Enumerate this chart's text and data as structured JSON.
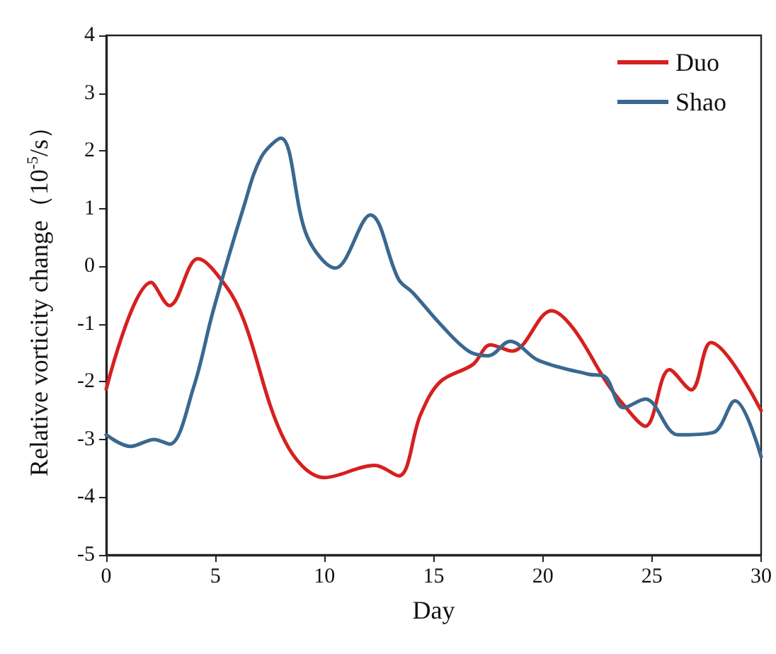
{
  "chart_data": {
    "type": "line",
    "xlabel": "Day",
    "ylabel": "Relative vorticity change（10$^{-5}$/s）",
    "xlim": [
      0,
      30
    ],
    "xticks": [
      0,
      5,
      10,
      15,
      20,
      25,
      30
    ],
    "ylim": [
      -5,
      4
    ],
    "yticks": [
      -5,
      -4,
      -3,
      -2,
      -1,
      0,
      1,
      2,
      3,
      4
    ],
    "grid": false,
    "legend": "top right",
    "marker": "none",
    "line_style": "solid",
    "series": [
      {
        "name": "Duo",
        "color": "#d62020",
        "x": [
          0,
          2.06,
          2.9,
          4.2,
          5.5,
          6.3,
          8.2,
          10,
          12.3,
          13.4,
          14.4,
          15.3,
          16.8,
          17.6,
          18.6,
          20.4,
          21.4,
          22.9,
          23.7,
          24.7,
          25.8,
          26.8,
          27.7,
          30
        ],
        "values": [
          -2.13,
          -0.28,
          -0.68,
          0.13,
          -0.35,
          -0.93,
          -3.04,
          -3.66,
          -3.45,
          -3.63,
          -2.57,
          -2.0,
          -1.7,
          -1.36,
          -1.47,
          -0.77,
          -1.08,
          -2.0,
          -2.4,
          -2.77,
          -1.79,
          -2.14,
          -1.32,
          -2.5
        ]
      },
      {
        "name": "Shao",
        "color": "#3a6890",
        "x": [
          0,
          1.1,
          2.2,
          2.9,
          4,
          4.9,
          6.3,
          7.1,
          8,
          9.2,
          10.5,
          12.1,
          13.4,
          14.05,
          15.3,
          16.6,
          17.5,
          18.5,
          19.8,
          22.1,
          22.8,
          23.7,
          24.7,
          26.2,
          27.8,
          28.8,
          30
        ],
        "values": [
          -2.92,
          -3.12,
          -3.0,
          -3.08,
          -2.1,
          -0.77,
          1.03,
          1.89,
          2.22,
          0.52,
          -0.03,
          0.89,
          -0.23,
          -0.46,
          -1.0,
          -1.47,
          -1.55,
          -1.3,
          -1.63,
          -1.87,
          -1.9,
          -2.45,
          -2.3,
          -2.92,
          -2.88,
          -2.33,
          -3.3
        ]
      }
    ]
  }
}
